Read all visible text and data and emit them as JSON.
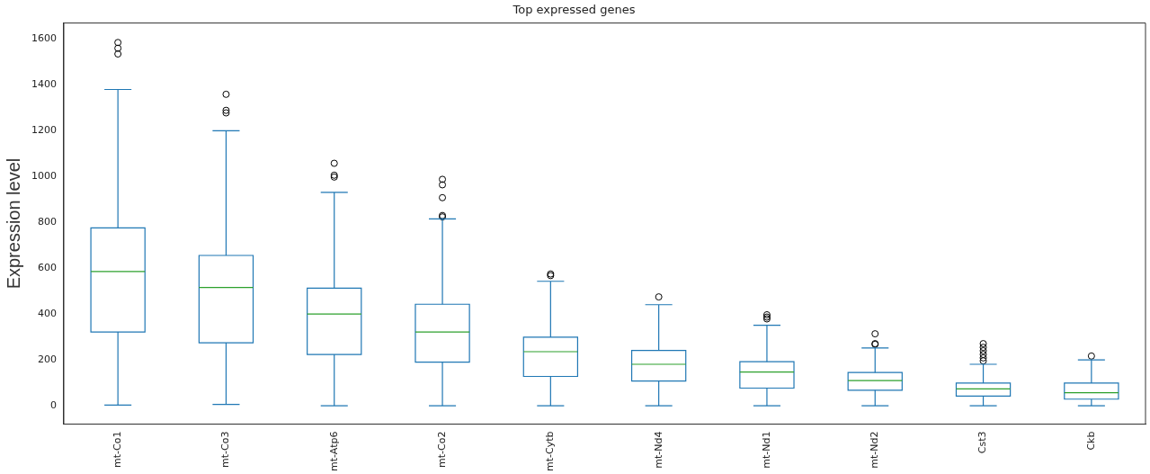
{
  "chart_data": {
    "type": "box",
    "title": "Top expressed genes",
    "ylabel": "Expression level",
    "categories": [
      "mt-Co1",
      "mt-Co3",
      "mt-Atp6",
      "mt-Co2",
      "mt-Cytb",
      "mt-Nd4",
      "mt-Nd1",
      "mt-Nd2",
      "Cst3",
      "Ckb"
    ],
    "series": [
      {
        "color": "#1f77b4",
        "boxes": [
          {
            "low": 3,
            "q1": 322,
            "median": 586,
            "q3": 776,
            "high": 1380,
            "outliers": [
              1585,
              1560,
              1535
            ]
          },
          {
            "low": 6,
            "q1": 275,
            "median": 516,
            "q3": 656,
            "high": 1200,
            "outliers": [
              1359,
              1289,
              1278
            ]
          },
          {
            "low": 0,
            "q1": 224,
            "median": 400,
            "q3": 513,
            "high": 931,
            "outliers": [
              1058,
              1006,
              998
            ]
          },
          {
            "low": 0,
            "q1": 190,
            "median": 322,
            "q3": 443,
            "high": 815,
            "outliers": [
              988,
              964,
              908,
              830,
              824
            ]
          },
          {
            "low": 0,
            "q1": 128,
            "median": 236,
            "q3": 299,
            "high": 543,
            "outliers": [
              575,
              568
            ]
          },
          {
            "low": 0,
            "q1": 108,
            "median": 181,
            "q3": 241,
            "high": 441,
            "outliers": [
              475
            ]
          },
          {
            "low": 0,
            "q1": 77,
            "median": 147,
            "q3": 192,
            "high": 351,
            "outliers": [
              397,
              387,
              379
            ]
          },
          {
            "low": 0,
            "q1": 68,
            "median": 110,
            "q3": 145,
            "high": 252,
            "outliers": [
              314,
              271,
              268
            ]
          },
          {
            "low": 0,
            "q1": 42,
            "median": 74,
            "q3": 99,
            "high": 181,
            "outliers": [
              271,
              255,
              240,
              224,
              209,
              196
            ]
          },
          {
            "low": 0,
            "q1": 29,
            "median": 57,
            "q3": 99,
            "high": 200,
            "outliers": [
              217
            ]
          }
        ]
      }
    ],
    "ylim": [
      -80,
      1670
    ],
    "yticks": [
      0,
      200,
      400,
      600,
      800,
      1000,
      1200,
      1400,
      1600
    ],
    "grid": false,
    "legend": false
  }
}
